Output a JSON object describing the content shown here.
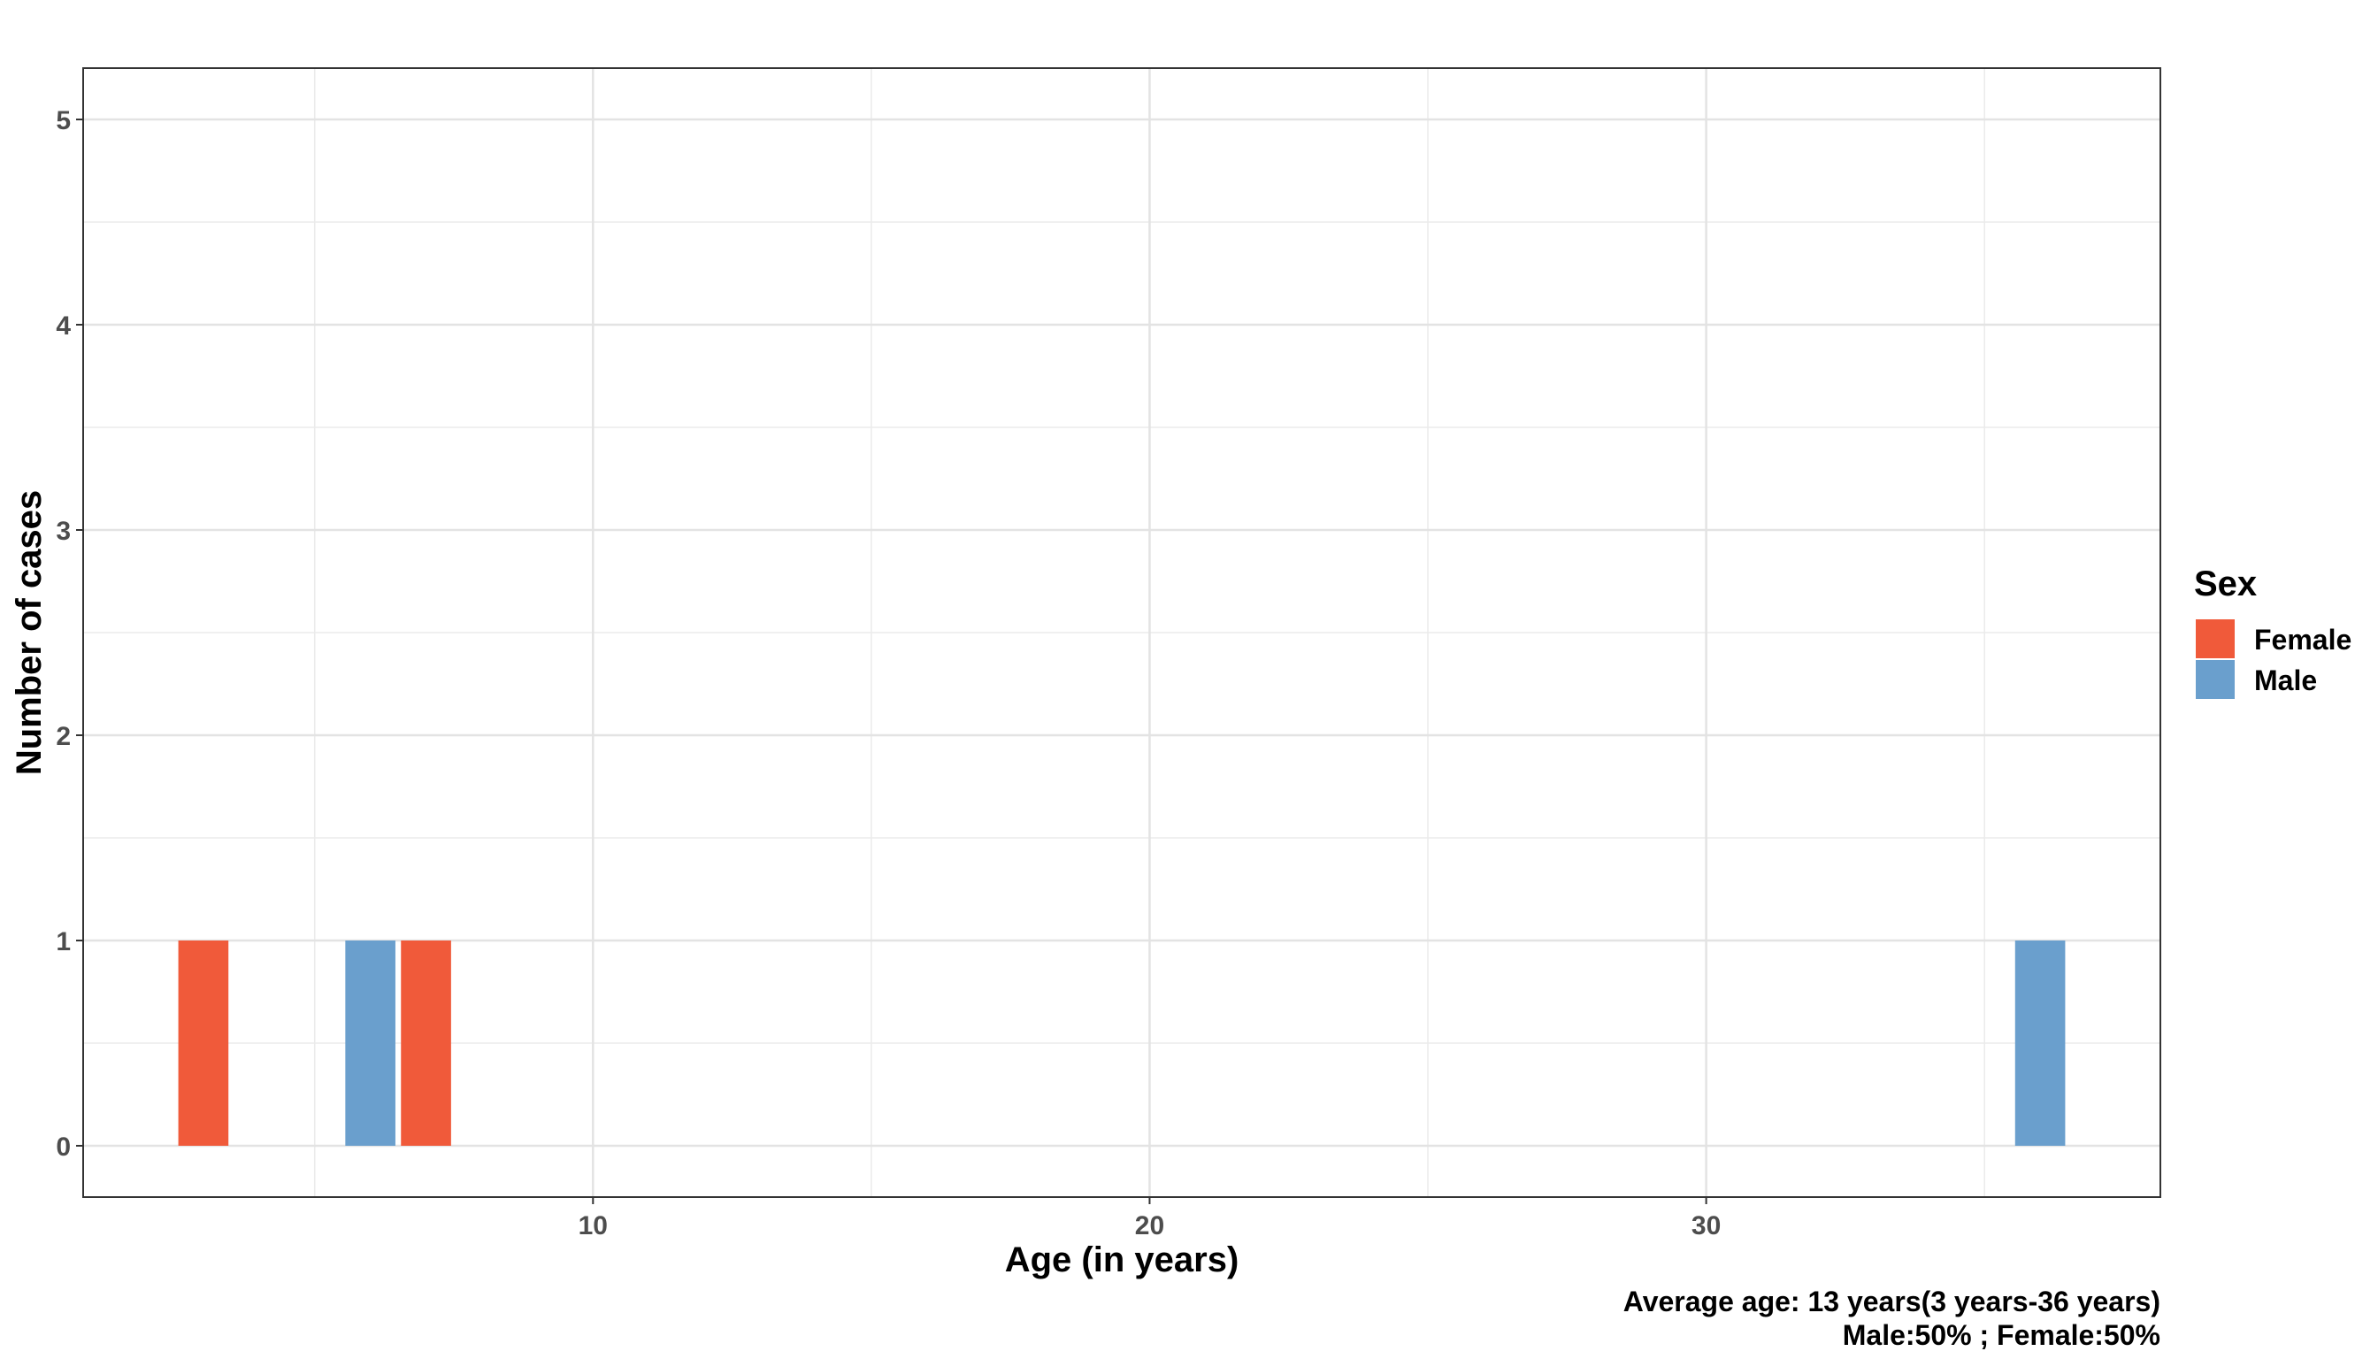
{
  "chart_data": {
    "type": "bar",
    "xlabel": "Age (in years)",
    "ylabel": "Number of cases",
    "xlim": [
      0.84,
      38.16
    ],
    "ylim": [
      -0.25,
      5.25
    ],
    "x_ticks": [
      10,
      20,
      30
    ],
    "y_ticks": [
      0,
      1,
      2,
      3,
      4,
      5
    ],
    "grid": true,
    "legend": {
      "title": "Sex",
      "placement": "right",
      "entries": [
        {
          "label": "Female",
          "color": "#f05a3a"
        },
        {
          "label": "Male",
          "color": "#6a9fcd"
        }
      ]
    },
    "series": [
      {
        "name": "Female",
        "color": "#f05a3a",
        "points": [
          {
            "x": 3,
            "y": 1
          },
          {
            "x": 7,
            "y": 1
          }
        ]
      },
      {
        "name": "Male",
        "color": "#6a9fcd",
        "points": [
          {
            "x": 6,
            "y": 1
          },
          {
            "x": 36,
            "y": 1
          }
        ]
      }
    ],
    "caption": [
      "Average age: 13 years(3 years-36 years)",
      "Male:50% ; Female:50%"
    ]
  }
}
